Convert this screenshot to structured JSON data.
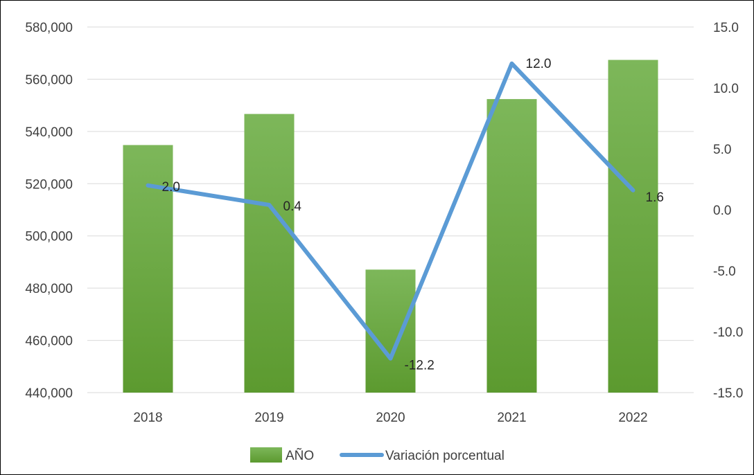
{
  "chart_data": {
    "type": "bar",
    "categories": [
      "2018",
      "2019",
      "2020",
      "2021",
      "2022"
    ],
    "series": [
      {
        "name": "AÑO",
        "type": "bar",
        "axis": "left",
        "values": [
          534800,
          546700,
          487100,
          552400,
          567400
        ]
      },
      {
        "name": "Variación porcentual",
        "type": "line",
        "axis": "right",
        "values": [
          2.0,
          0.4,
          -12.2,
          12.0,
          1.6
        ],
        "data_labels": [
          "2.0",
          "0.4",
          "-12.2",
          "12.0",
          "1.6"
        ]
      }
    ],
    "y_left": {
      "min": 440000,
      "max": 580000,
      "ticks": [
        "440,000",
        "460,000",
        "480,000",
        "500,000",
        "520,000",
        "540,000",
        "560,000",
        "580,000"
      ]
    },
    "y_right": {
      "min": -15,
      "max": 15,
      "ticks": [
        "-15.0",
        "-10.0",
        "-5.0",
        "0.0",
        "5.0",
        "10.0",
        "15.0"
      ]
    },
    "grid": true,
    "legend": "bottom",
    "colors": {
      "bar_top": "#7db75a",
      "bar_bottom": "#5c9a2f",
      "line": "#5b9bd5",
      "grid": "#d9d9d9"
    }
  }
}
